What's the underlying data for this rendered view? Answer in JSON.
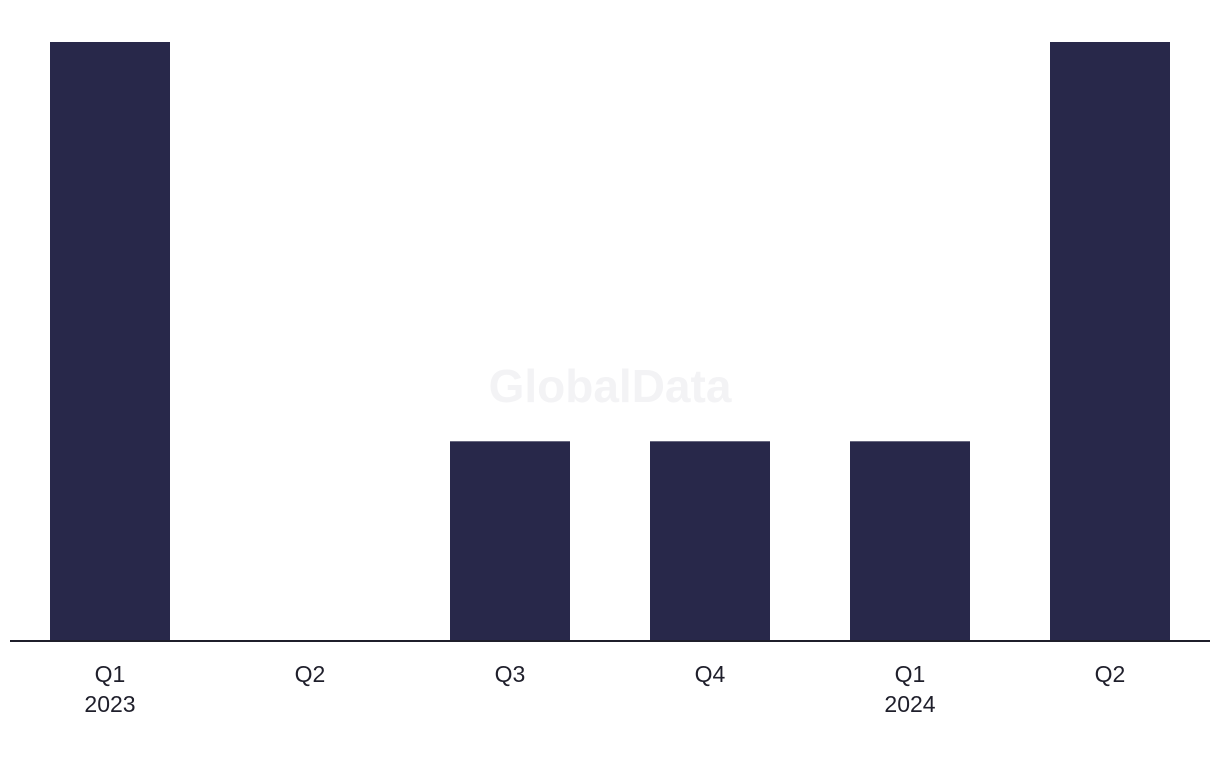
{
  "watermark": "GlobalData",
  "colors": {
    "bar": "#28284a",
    "axis": "#1f1f2b",
    "background": "#ffffff"
  },
  "chart_data": {
    "type": "bar",
    "title": "",
    "xlabel": "",
    "ylabel": "",
    "categories": [
      {
        "quarter": "Q1",
        "year": "2023"
      },
      {
        "quarter": "Q2",
        "year": ""
      },
      {
        "quarter": "Q3",
        "year": ""
      },
      {
        "quarter": "Q4",
        "year": ""
      },
      {
        "quarter": "Q1",
        "year": "2024"
      },
      {
        "quarter": "Q2",
        "year": ""
      }
    ],
    "values": [
      3,
      0,
      1,
      1,
      1,
      3
    ],
    "ylim": [
      0,
      3
    ],
    "grid": false,
    "legend": "none"
  }
}
